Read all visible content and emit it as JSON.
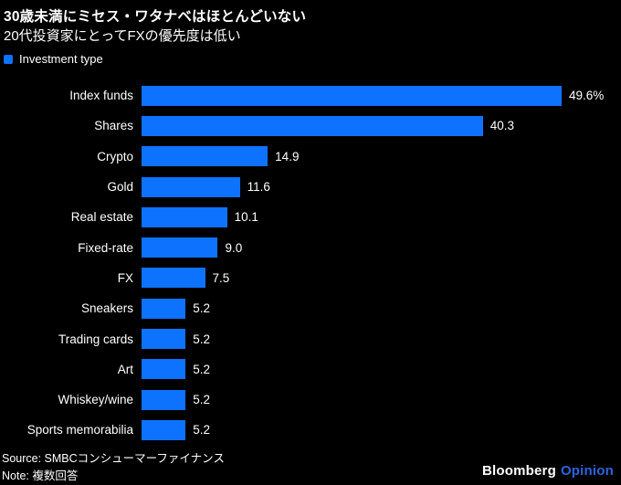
{
  "header": {
    "title": "30歳未満にミセス・ワタナベはほとんどいない",
    "subtitle": "20代投資家にとってFXの優先度は低い"
  },
  "legend": {
    "label": "Investment type",
    "swatch_color": "#0d73ff"
  },
  "chart_data": {
    "type": "bar",
    "orientation": "horizontal",
    "series_name": "Investment type",
    "categories": [
      "Index funds",
      "Shares",
      "Crypto",
      "Gold",
      "Real estate",
      "Fixed-rate",
      "FX",
      "Sneakers",
      "Trading cards",
      "Art",
      "Whiskey/wine",
      "Sports memorabilia"
    ],
    "values": [
      49.6,
      40.3,
      14.9,
      11.6,
      10.1,
      9.0,
      7.5,
      5.2,
      5.2,
      5.2,
      5.2,
      5.2
    ],
    "value_labels": [
      "49.6%",
      "40.3",
      "14.9",
      "11.6",
      "10.1",
      "9.0",
      "7.5",
      "5.2",
      "5.2",
      "5.2",
      "5.2",
      "5.2"
    ],
    "unit": "%",
    "xlim": [
      0,
      49.6
    ],
    "grid": false,
    "bar_color": "#0d73ff",
    "background_color": "#000000",
    "text_color": "#ffffff"
  },
  "footer": {
    "source": "Source: SMBCコンシューマーファイナンス",
    "note": "Note: 複数回答",
    "logo_brand": "Bloomberg",
    "logo_sub": "Opinion"
  },
  "colors": {
    "background": "#000000",
    "text": "#ffffff",
    "bar_blue": "#0d73ff",
    "opinion_blue": "#2f63e0"
  }
}
